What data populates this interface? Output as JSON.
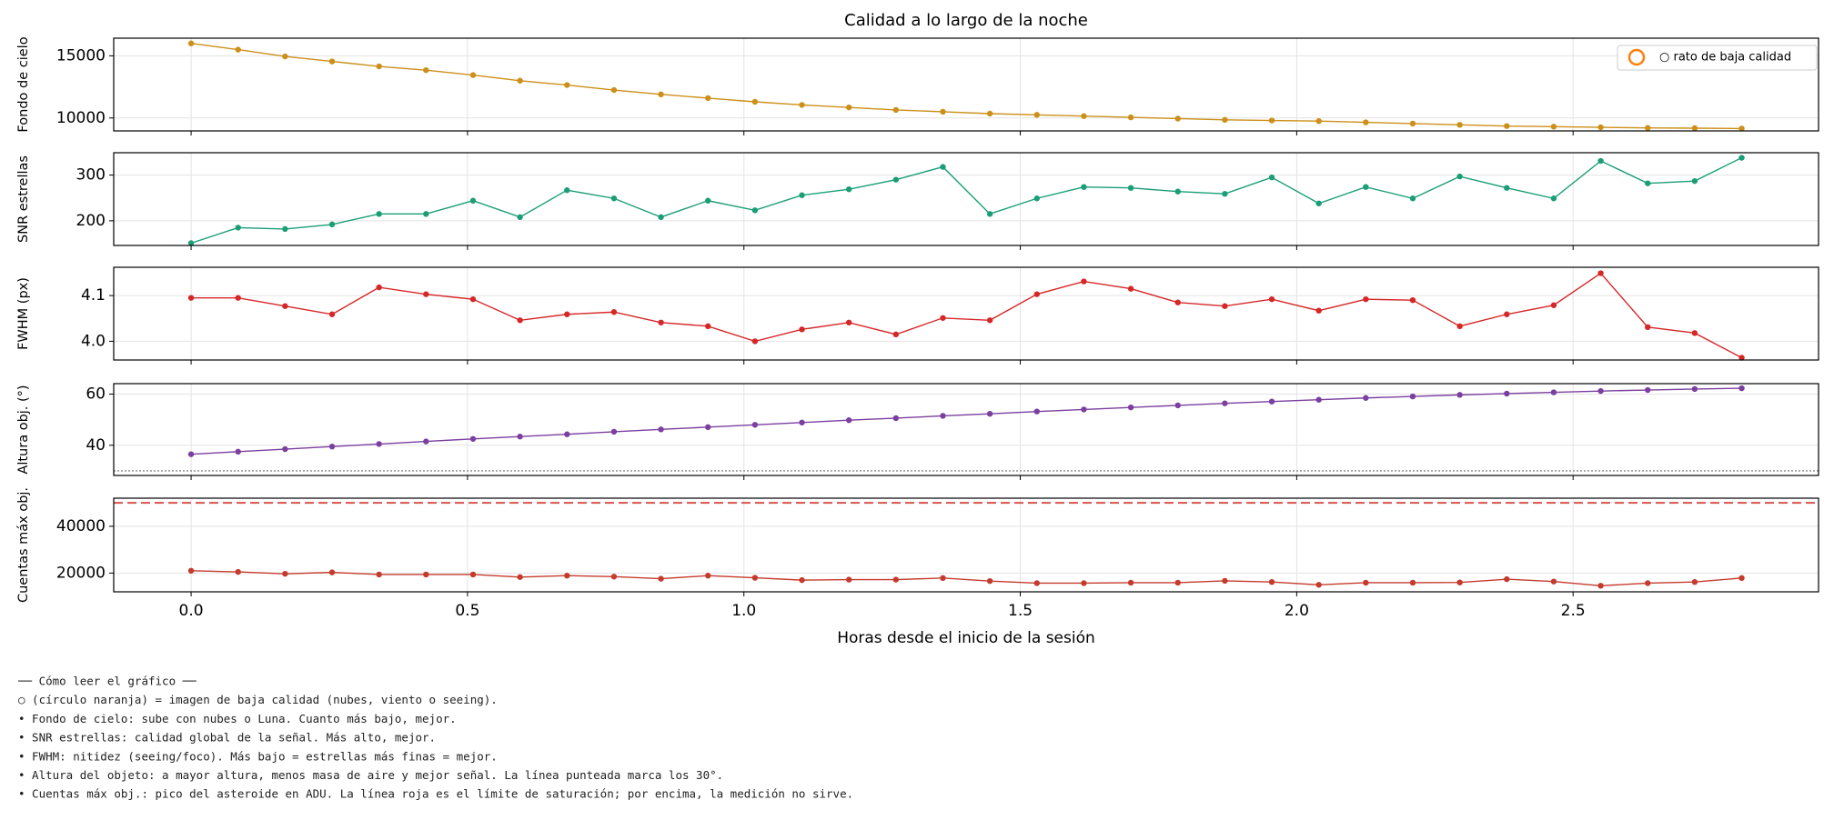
{
  "title": "Calidad a lo largo de la noche",
  "chart_data": [
    {
      "type": "line",
      "ylabel": "Fondo de cielo",
      "color": "#cc8f1a",
      "xlim": [
        -0.14,
        2.944
      ],
      "ylim": [
        8960,
        16420
      ],
      "yticks": [
        10000,
        15000
      ],
      "grid": true,
      "legend": {
        "position": "upper right",
        "entries": [
          {
            "name": "○ rato de baja calidad",
            "color": "#ff7f0e"
          }
        ]
      },
      "x": [
        0,
        0.085,
        0.17,
        0.255,
        0.34,
        0.425,
        0.51,
        0.595,
        0.68,
        0.765,
        0.85,
        0.935,
        1.02,
        1.105,
        1.19,
        1.275,
        1.36,
        1.445,
        1.53,
        1.615,
        1.7,
        1.785,
        1.87,
        1.955,
        2.04,
        2.125,
        2.21,
        2.295,
        2.38,
        2.465,
        2.55,
        2.635,
        2.72,
        2.805
      ],
      "values": [
        16000,
        15500,
        14950,
        14550,
        14150,
        13850,
        13450,
        13000,
        12650,
        12250,
        11900,
        11600,
        11300,
        11050,
        10850,
        10650,
        10500,
        10350,
        10250,
        10150,
        10050,
        9950,
        9850,
        9800,
        9750,
        9650,
        9550,
        9450,
        9350,
        9300,
        9250,
        9200,
        9180,
        9150
      ]
    },
    {
      "type": "line",
      "ylabel": "SNR estrellas",
      "color": "#1b9e77",
      "xlim": [
        -0.14,
        2.944
      ],
      "ylim": [
        146,
        349
      ],
      "yticks": [
        200,
        300
      ],
      "grid": true,
      "x": [
        0,
        0.085,
        0.17,
        0.255,
        0.34,
        0.425,
        0.51,
        0.595,
        0.68,
        0.765,
        0.85,
        0.935,
        1.02,
        1.105,
        1.19,
        1.275,
        1.36,
        1.445,
        1.53,
        1.615,
        1.7,
        1.785,
        1.87,
        1.955,
        2.04,
        2.125,
        2.21,
        2.295,
        2.38,
        2.465,
        2.55,
        2.635,
        2.72,
        2.805
      ],
      "values": [
        151,
        185,
        182,
        192,
        215,
        215,
        244,
        208,
        267,
        249,
        208,
        244,
        223,
        256,
        269,
        290,
        318,
        215,
        249,
        274,
        272,
        264,
        259,
        295,
        238,
        274,
        249,
        297,
        272,
        249,
        331,
        282,
        287,
        338
      ]
    },
    {
      "type": "line",
      "ylabel": "FWHM (px)",
      "color": "#d62728",
      "xlim": [
        -0.14,
        2.944
      ],
      "ylim": [
        3.959,
        4.162
      ],
      "yticks": [
        {
          "value": 4.0,
          "label": "4.0"
        },
        4.1
      ],
      "grid": true,
      "x": [
        0,
        0.085,
        0.17,
        0.255,
        0.34,
        0.425,
        0.51,
        0.595,
        0.68,
        0.765,
        0.85,
        0.935,
        1.02,
        1.105,
        1.19,
        1.275,
        1.36,
        1.445,
        1.53,
        1.615,
        1.7,
        1.785,
        1.87,
        1.955,
        2.04,
        2.125,
        2.21,
        2.295,
        2.38,
        2.465,
        2.55,
        2.635,
        2.72,
        2.805
      ],
      "values": [
        4.095,
        4.095,
        4.077,
        4.059,
        4.118,
        4.103,
        4.092,
        4.046,
        4.059,
        4.064,
        4.041,
        4.033,
        4.0,
        4.026,
        4.041,
        4.015,
        4.051,
        4.046,
        4.103,
        4.131,
        4.115,
        4.085,
        4.077,
        4.092,
        4.067,
        4.092,
        4.09,
        4.033,
        4.059,
        4.079,
        4.149,
        4.031,
        4.018,
        3.964
      ]
    },
    {
      "type": "line",
      "ylabel": "Altura obj. (°)",
      "color": "#7b3fa0",
      "xlim": [
        -0.14,
        2.944
      ],
      "ylim": [
        28.2,
        64.1
      ],
      "yticks": [
        40,
        60
      ],
      "grid": true,
      "hline": {
        "value": 30,
        "color": "#888888",
        "style": "dotted"
      },
      "x": [
        0,
        0.085,
        0.17,
        0.255,
        0.34,
        0.425,
        0.51,
        0.595,
        0.68,
        0.765,
        0.85,
        0.935,
        1.02,
        1.105,
        1.19,
        1.275,
        1.36,
        1.445,
        1.53,
        1.615,
        1.7,
        1.785,
        1.87,
        1.955,
        2.04,
        2.125,
        2.21,
        2.295,
        2.38,
        2.465,
        2.55,
        2.635,
        2.72,
        2.805
      ],
      "values": [
        36.5,
        37.5,
        38.5,
        39.5,
        40.5,
        41.5,
        42.5,
        43.4,
        44.3,
        45.3,
        46.2,
        47.1,
        48.0,
        48.9,
        49.8,
        50.6,
        51.5,
        52.3,
        53.2,
        54.0,
        54.8,
        55.6,
        56.4,
        57.1,
        57.8,
        58.5,
        59.1,
        59.7,
        60.2,
        60.7,
        61.2,
        61.6,
        62.0,
        62.3
      ]
    },
    {
      "type": "line",
      "ylabel": "Cuentas máx obj.",
      "color": "#c43b2d",
      "xlim": [
        -0.14,
        2.944
      ],
      "ylim": [
        12000,
        52000
      ],
      "yticks": [
        20000,
        40000
      ],
      "grid": true,
      "hline": {
        "value": 50000,
        "color": "#d9534f",
        "style": "dashed"
      },
      "xlabel": "Horas desde el inicio de la sesión",
      "xticks": [
        {
          "value": 0,
          "label": "0.0"
        },
        0.5,
        {
          "value": 1,
          "label": "1.0"
        },
        1.5,
        {
          "value": 2,
          "label": "2.0"
        },
        2.5
      ],
      "x": [
        0,
        0.085,
        0.17,
        0.255,
        0.34,
        0.425,
        0.51,
        0.595,
        0.68,
        0.765,
        0.85,
        0.935,
        1.02,
        1.105,
        1.19,
        1.275,
        1.36,
        1.445,
        1.53,
        1.615,
        1.7,
        1.785,
        1.87,
        1.955,
        2.04,
        2.125,
        2.21,
        2.295,
        2.38,
        2.465,
        2.55,
        2.635,
        2.72,
        2.805
      ],
      "values": [
        21000,
        20500,
        19700,
        20300,
        19400,
        19400,
        19400,
        18300,
        18900,
        18500,
        17600,
        18900,
        18000,
        17000,
        17200,
        17200,
        17900,
        16600,
        15700,
        15700,
        15900,
        15900,
        16700,
        16200,
        15000,
        15900,
        15900,
        16000,
        17400,
        16400,
        14600,
        15700,
        16200,
        17900
      ]
    }
  ],
  "notes": [
    "── Cómo leer el gráfico ──",
    "○ (círculo naranja) = imagen de baja calidad (nubes, viento o seeing).",
    "• Fondo de cielo: sube con nubes o Luna. Cuanto más bajo, mejor.",
    "• SNR estrellas: calidad global de la señal. Más alto, mejor.",
    "• FWHM: nitidez (seeing/foco). Más bajo = estrellas más finas = mejor.",
    "• Altura del objeto: a mayor altura, menos masa de aire y mejor señal. La línea punteada marca los 30°.",
    "• Cuentas máx obj.: pico del asteroide en ADU. La línea roja es el límite de saturación; por encima, la medición no sirve."
  ]
}
